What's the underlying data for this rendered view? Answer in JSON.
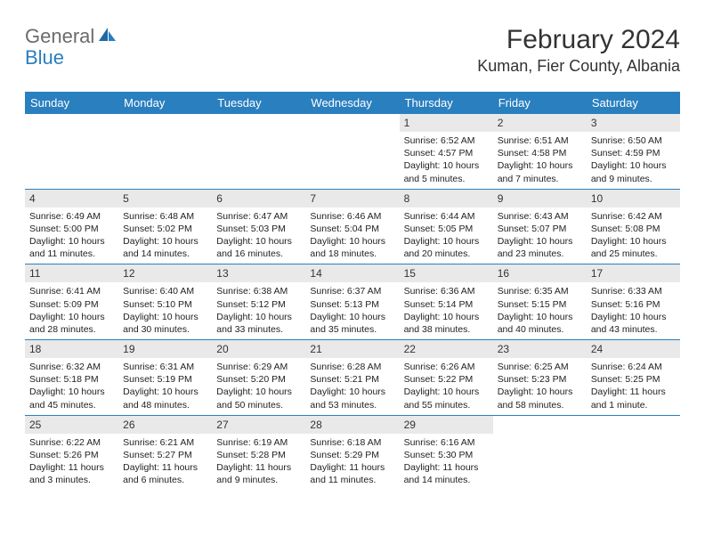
{
  "logo": {
    "part1": "General",
    "part2": "Blue"
  },
  "title": "February 2024",
  "location": "Kuman, Fier County, Albania",
  "colors": {
    "header_bg": "#2a7fbf",
    "header_text": "#ffffff",
    "daynum_bg": "#e9e9e9",
    "border": "#2a7fbf",
    "body_text": "#222222",
    "logo_gray": "#6b6b6b",
    "logo_blue": "#2a7fbf"
  },
  "weekdays": [
    "Sunday",
    "Monday",
    "Tuesday",
    "Wednesday",
    "Thursday",
    "Friday",
    "Saturday"
  ],
  "weeks": [
    [
      null,
      null,
      null,
      null,
      {
        "n": "1",
        "sunrise": "6:52 AM",
        "sunset": "4:57 PM",
        "daylight": "10 hours and 5 minutes."
      },
      {
        "n": "2",
        "sunrise": "6:51 AM",
        "sunset": "4:58 PM",
        "daylight": "10 hours and 7 minutes."
      },
      {
        "n": "3",
        "sunrise": "6:50 AM",
        "sunset": "4:59 PM",
        "daylight": "10 hours and 9 minutes."
      }
    ],
    [
      {
        "n": "4",
        "sunrise": "6:49 AM",
        "sunset": "5:00 PM",
        "daylight": "10 hours and 11 minutes."
      },
      {
        "n": "5",
        "sunrise": "6:48 AM",
        "sunset": "5:02 PM",
        "daylight": "10 hours and 14 minutes."
      },
      {
        "n": "6",
        "sunrise": "6:47 AM",
        "sunset": "5:03 PM",
        "daylight": "10 hours and 16 minutes."
      },
      {
        "n": "7",
        "sunrise": "6:46 AM",
        "sunset": "5:04 PM",
        "daylight": "10 hours and 18 minutes."
      },
      {
        "n": "8",
        "sunrise": "6:44 AM",
        "sunset": "5:05 PM",
        "daylight": "10 hours and 20 minutes."
      },
      {
        "n": "9",
        "sunrise": "6:43 AM",
        "sunset": "5:07 PM",
        "daylight": "10 hours and 23 minutes."
      },
      {
        "n": "10",
        "sunrise": "6:42 AM",
        "sunset": "5:08 PM",
        "daylight": "10 hours and 25 minutes."
      }
    ],
    [
      {
        "n": "11",
        "sunrise": "6:41 AM",
        "sunset": "5:09 PM",
        "daylight": "10 hours and 28 minutes."
      },
      {
        "n": "12",
        "sunrise": "6:40 AM",
        "sunset": "5:10 PM",
        "daylight": "10 hours and 30 minutes."
      },
      {
        "n": "13",
        "sunrise": "6:38 AM",
        "sunset": "5:12 PM",
        "daylight": "10 hours and 33 minutes."
      },
      {
        "n": "14",
        "sunrise": "6:37 AM",
        "sunset": "5:13 PM",
        "daylight": "10 hours and 35 minutes."
      },
      {
        "n": "15",
        "sunrise": "6:36 AM",
        "sunset": "5:14 PM",
        "daylight": "10 hours and 38 minutes."
      },
      {
        "n": "16",
        "sunrise": "6:35 AM",
        "sunset": "5:15 PM",
        "daylight": "10 hours and 40 minutes."
      },
      {
        "n": "17",
        "sunrise": "6:33 AM",
        "sunset": "5:16 PM",
        "daylight": "10 hours and 43 minutes."
      }
    ],
    [
      {
        "n": "18",
        "sunrise": "6:32 AM",
        "sunset": "5:18 PM",
        "daylight": "10 hours and 45 minutes."
      },
      {
        "n": "19",
        "sunrise": "6:31 AM",
        "sunset": "5:19 PM",
        "daylight": "10 hours and 48 minutes."
      },
      {
        "n": "20",
        "sunrise": "6:29 AM",
        "sunset": "5:20 PM",
        "daylight": "10 hours and 50 minutes."
      },
      {
        "n": "21",
        "sunrise": "6:28 AM",
        "sunset": "5:21 PM",
        "daylight": "10 hours and 53 minutes."
      },
      {
        "n": "22",
        "sunrise": "6:26 AM",
        "sunset": "5:22 PM",
        "daylight": "10 hours and 55 minutes."
      },
      {
        "n": "23",
        "sunrise": "6:25 AM",
        "sunset": "5:23 PM",
        "daylight": "10 hours and 58 minutes."
      },
      {
        "n": "24",
        "sunrise": "6:24 AM",
        "sunset": "5:25 PM",
        "daylight": "11 hours and 1 minute."
      }
    ],
    [
      {
        "n": "25",
        "sunrise": "6:22 AM",
        "sunset": "5:26 PM",
        "daylight": "11 hours and 3 minutes."
      },
      {
        "n": "26",
        "sunrise": "6:21 AM",
        "sunset": "5:27 PM",
        "daylight": "11 hours and 6 minutes."
      },
      {
        "n": "27",
        "sunrise": "6:19 AM",
        "sunset": "5:28 PM",
        "daylight": "11 hours and 9 minutes."
      },
      {
        "n": "28",
        "sunrise": "6:18 AM",
        "sunset": "5:29 PM",
        "daylight": "11 hours and 11 minutes."
      },
      {
        "n": "29",
        "sunrise": "6:16 AM",
        "sunset": "5:30 PM",
        "daylight": "11 hours and 14 minutes."
      },
      null,
      null
    ]
  ],
  "labels": {
    "sunrise": "Sunrise:",
    "sunset": "Sunset:",
    "daylight": "Daylight:"
  }
}
